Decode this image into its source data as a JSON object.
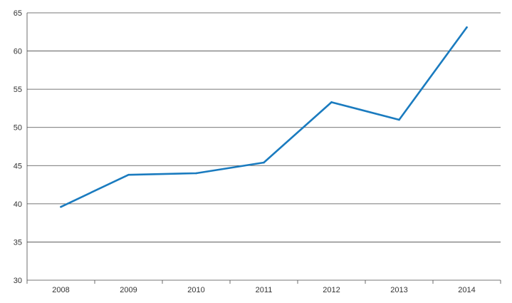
{
  "chart_data": {
    "type": "line",
    "title": "",
    "xlabel": "",
    "ylabel": "",
    "categories": [
      "2008",
      "2009",
      "2010",
      "2011",
      "2012",
      "2013",
      "2014"
    ],
    "series": [
      {
        "values": [
          39.6,
          43.8,
          44.0,
          45.4,
          53.3,
          51.0,
          63.1
        ],
        "color": "#1a7bbf"
      }
    ],
    "ylim": [
      30,
      65
    ],
    "yticks": [
      30,
      35,
      40,
      45,
      50,
      55,
      60,
      65
    ],
    "grid": true,
    "legend": "none"
  }
}
